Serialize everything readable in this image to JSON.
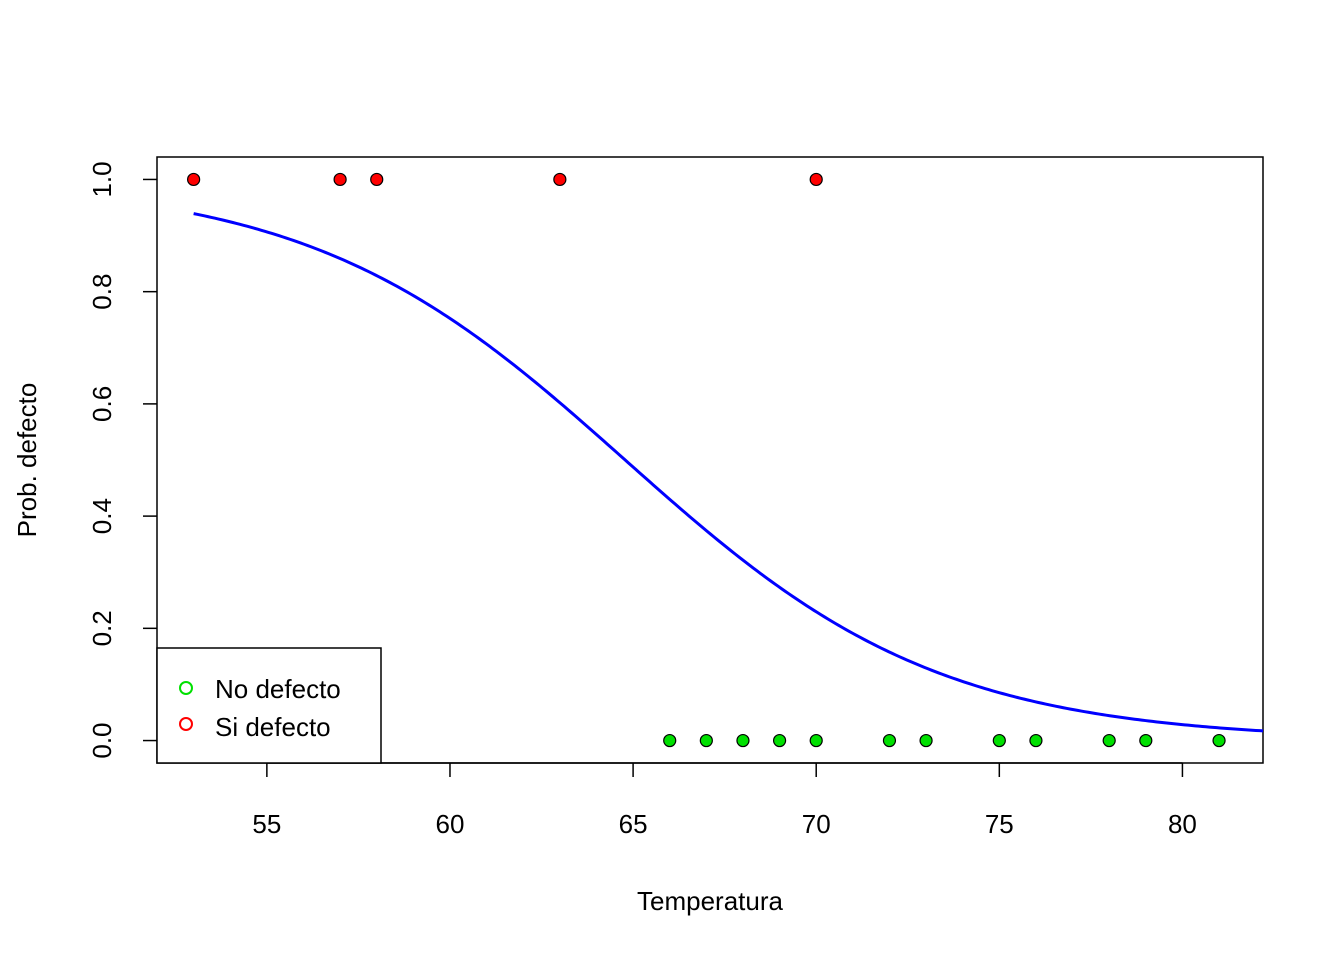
{
  "chart_data": {
    "type": "scatter",
    "title": "",
    "xlabel": "Temperatura",
    "ylabel": "Prob. defecto",
    "xlim": [
      52,
      82.2
    ],
    "ylim": [
      -0.04,
      1.04
    ],
    "xticks": [
      55,
      60,
      65,
      70,
      75,
      80
    ],
    "yticks": [
      0.0,
      0.2,
      0.4,
      0.6,
      0.8,
      1.0
    ],
    "xtick_labels": [
      "55",
      "60",
      "65",
      "70",
      "75",
      "80"
    ],
    "ytick_labels": [
      "0.0",
      "0.2",
      "0.4",
      "0.6",
      "0.8",
      "1.0"
    ],
    "grid": false,
    "legend_position": "bottom-left",
    "series": [
      {
        "name": "No defecto",
        "color": "#00e000",
        "marker": "circle",
        "points": [
          {
            "x": 66,
            "y": 0
          },
          {
            "x": 67,
            "y": 0
          },
          {
            "x": 68,
            "y": 0
          },
          {
            "x": 69,
            "y": 0
          },
          {
            "x": 70,
            "y": 0
          },
          {
            "x": 72,
            "y": 0
          },
          {
            "x": 73,
            "y": 0
          },
          {
            "x": 75,
            "y": 0
          },
          {
            "x": 76,
            "y": 0
          },
          {
            "x": 78,
            "y": 0
          },
          {
            "x": 79,
            "y": 0
          },
          {
            "x": 81,
            "y": 0
          }
        ]
      },
      {
        "name": "Si defecto",
        "color": "#ff0000",
        "marker": "circle",
        "points": [
          {
            "x": 53,
            "y": 1
          },
          {
            "x": 57,
            "y": 1
          },
          {
            "x": 58,
            "y": 1
          },
          {
            "x": 63,
            "y": 1
          },
          {
            "x": 70,
            "y": 1
          }
        ]
      }
    ],
    "fitted_curve": {
      "type": "logistic",
      "color": "#0000ff",
      "intercept": 15.0429,
      "slope": -0.2322,
      "x_range": [
        53,
        82.2
      ]
    },
    "legend": [
      {
        "label": "No defecto",
        "color": "#00e000"
      },
      {
        "label": "Si defecto",
        "color": "#ff0000"
      }
    ]
  }
}
